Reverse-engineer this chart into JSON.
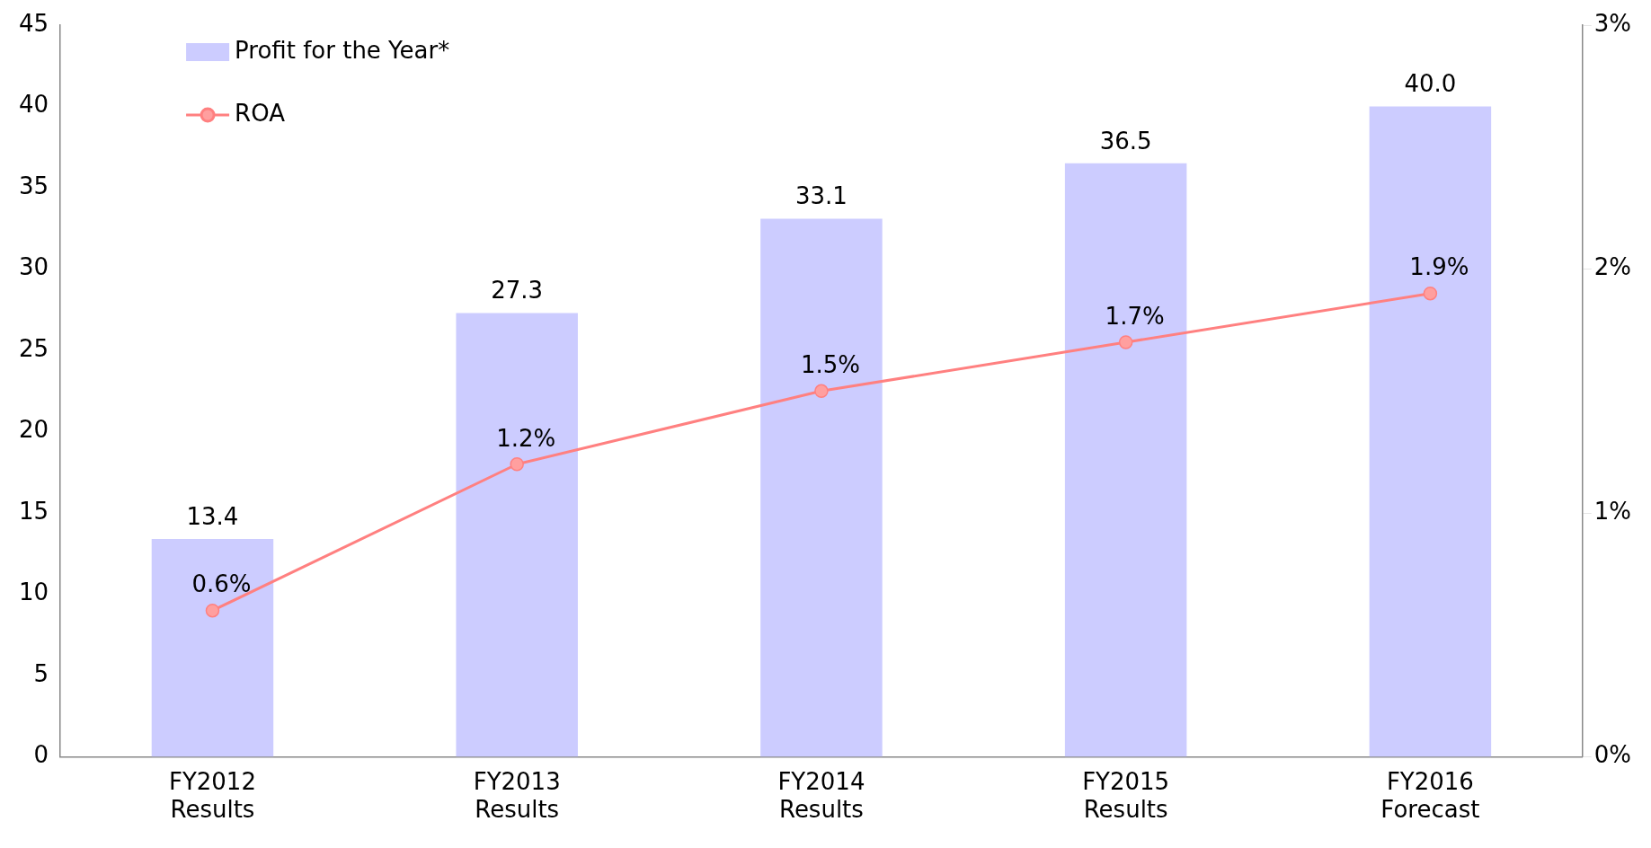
{
  "chart_data": {
    "type": "bar",
    "categories": [
      "FY2012\nResults",
      "FY2013\nResults",
      "FY2014\nResults",
      "FY2015\nResults",
      "FY2016\nForecast"
    ],
    "series": [
      {
        "name": "Profit for the Year*",
        "color": "#ccccff",
        "values": [
          13.4,
          27.3,
          33.1,
          36.5,
          40.0
        ],
        "value_labels": [
          "13.4",
          "27.3",
          "33.1",
          "36.5",
          "40.0"
        ]
      },
      {
        "name": "ROA",
        "type": "line",
        "axis": "y2",
        "color": "#ff8080",
        "marker": "circle",
        "values": [
          0.6,
          1.2,
          1.5,
          1.7,
          1.9
        ],
        "value_labels": [
          "0.6%",
          "1.2%",
          "1.5%",
          "1.7%",
          "1.9%"
        ]
      }
    ],
    "ylim": [
      0,
      45
    ],
    "yticks": [
      0,
      5,
      10,
      15,
      20,
      25,
      30,
      35,
      40,
      45
    ],
    "y2lim": [
      0,
      3
    ],
    "y2ticks": [
      {
        "value": 0,
        "label": "0%"
      },
      {
        "value": 1,
        "label": "1%"
      },
      {
        "value": 2,
        "label": "2%"
      },
      {
        "value": 3,
        "label": "3%"
      }
    ],
    "grid": false,
    "legend": "top left"
  }
}
